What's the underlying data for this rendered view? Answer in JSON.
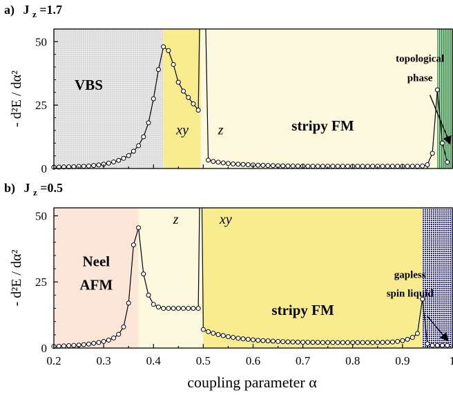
{
  "chart_data": [
    {
      "type": "line",
      "panel_letter": "a)",
      "panel_param": "J",
      "panel_sub": "z",
      "panel_value": "=1.7",
      "ylabel": "- d²E / dα²",
      "xlim": [
        0.2,
        1.0
      ],
      "ylim": [
        0,
        55
      ],
      "yticks": [
        0,
        25,
        50
      ],
      "phases": [
        {
          "from": 0.2,
          "to": 0.42,
          "fill": "#e6e6e6",
          "pattern": "dots-gray"
        },
        {
          "from": 0.42,
          "to": 0.495,
          "fill": "#f8ec8e",
          "pattern": ""
        },
        {
          "from": 0.495,
          "to": 0.97,
          "fill": "#fdf9de",
          "pattern": ""
        },
        {
          "from": 0.97,
          "to": 1.0,
          "fill": "#3f9a4a",
          "pattern": "lines-green"
        }
      ],
      "phase_labels": [
        {
          "text": "VBS",
          "x": 0.27,
          "y": 31,
          "style": "bold"
        },
        {
          "text": "xy",
          "x": 0.458,
          "y": 13.5,
          "style": "italic"
        },
        {
          "text": "z",
          "x": 0.535,
          "y": 13.5,
          "style": "italic"
        },
        {
          "text": "stripy FM",
          "x": 0.74,
          "y": 15,
          "style": "bold"
        },
        {
          "text": "topological",
          "x": 0.935,
          "y": 42,
          "style": "bold-small"
        },
        {
          "text": "phase",
          "x": 0.935,
          "y": 34.5,
          "style": "bold-small"
        }
      ],
      "series": [
        {
          "x": [
            0.2,
            0.21,
            0.22,
            0.23,
            0.24,
            0.25,
            0.26,
            0.27,
            0.28,
            0.29,
            0.3,
            0.31,
            0.32,
            0.33,
            0.34,
            0.35,
            0.36,
            0.37,
            0.38,
            0.39,
            0.4,
            0.41,
            0.42,
            0.43,
            0.44,
            0.45,
            0.46,
            0.47,
            0.48,
            0.49
          ],
          "y": [
            0.5,
            0.55,
            0.6,
            0.65,
            0.7,
            0.8,
            0.9,
            1.0,
            1.2,
            1.4,
            1.7,
            2.1,
            2.6,
            3.2,
            4.0,
            5.1,
            6.8,
            9.0,
            12.5,
            18.0,
            27.5,
            39.0,
            48.0,
            46.5,
            41.0,
            34.0,
            30.5,
            28.0,
            25.5,
            23.0
          ]
        },
        {
          "x": [
            0.51,
            0.52,
            0.53,
            0.54,
            0.55,
            0.56,
            0.57,
            0.58,
            0.59,
            0.6,
            0.61,
            0.62,
            0.63,
            0.64,
            0.65,
            0.66,
            0.67,
            0.68,
            0.69,
            0.7,
            0.71,
            0.72,
            0.73,
            0.74,
            0.75,
            0.76,
            0.77,
            0.78,
            0.79,
            0.8,
            0.81,
            0.82,
            0.83,
            0.84,
            0.85,
            0.86,
            0.87,
            0.88,
            0.89,
            0.9,
            0.91,
            0.92,
            0.93,
            0.94,
            0.95,
            0.96,
            0.97,
            0.98,
            0.99
          ],
          "y": [
            3.3,
            2.8,
            2.5,
            2.2,
            2.0,
            1.8,
            1.7,
            1.6,
            1.5,
            1.4,
            1.3,
            1.25,
            1.2,
            1.15,
            1.1,
            1.05,
            1.0,
            1.0,
            0.95,
            0.95,
            0.9,
            0.9,
            0.9,
            0.9,
            0.9,
            0.9,
            0.9,
            0.9,
            0.9,
            0.9,
            0.9,
            0.9,
            0.9,
            0.9,
            0.9,
            0.9,
            0.9,
            0.9,
            0.9,
            0.9,
            0.9,
            0.9,
            0.9,
            1.0,
            1.5,
            6.0,
            31.0,
            10.0,
            2.5
          ]
        }
      ],
      "spikes": [
        {
          "x0": 0.49,
          "y0": 23.0,
          "x_peak": 0.4925,
          "x_back": 0.505,
          "x1": 0.51,
          "y1": 3.3
        }
      ],
      "arrow": {
        "from": [
          0.955,
          29
        ],
        "to": [
          0.995,
          10
        ]
      }
    },
    {
      "type": "line",
      "panel_letter": "b)",
      "panel_param": "J",
      "panel_sub": "z",
      "panel_value": "=0.5",
      "ylabel": "- d²E / dα²",
      "xlabel": "coupling parameter  α",
      "xlim": [
        0.2,
        1.0
      ],
      "ylim": [
        0,
        53
      ],
      "yticks": [
        0,
        25,
        50
      ],
      "xticks": [
        0.2,
        0.3,
        0.4,
        0.5,
        0.6,
        0.7,
        0.8,
        0.9,
        1
      ],
      "xtick_labels": [
        "0.2",
        "0.3",
        "0.4",
        "0.5",
        "0.6",
        "0.7",
        "0.8",
        "0.9",
        "1"
      ],
      "phases": [
        {
          "from": 0.2,
          "to": 0.37,
          "fill": "#fce6d8",
          "pattern": ""
        },
        {
          "from": 0.37,
          "to": 0.5,
          "fill": "#fdf9de",
          "pattern": ""
        },
        {
          "from": 0.5,
          "to": 0.94,
          "fill": "#f8ec8e",
          "pattern": ""
        },
        {
          "from": 0.94,
          "to": 1.0,
          "fill": "#2b2bb0",
          "pattern": "dots-blue"
        }
      ],
      "phase_labels": [
        {
          "text": "Neel",
          "x": 0.285,
          "y": 31,
          "style": "bold"
        },
        {
          "text": "AFM",
          "x": 0.285,
          "y": 22,
          "style": "bold"
        },
        {
          "text": "z",
          "x": 0.445,
          "y": 47,
          "style": "italic"
        },
        {
          "text": "xy",
          "x": 0.545,
          "y": 47,
          "style": "italic"
        },
        {
          "text": "stripy FM",
          "x": 0.7,
          "y": 12.5,
          "style": "bold"
        },
        {
          "text": "gapless",
          "x": 0.915,
          "y": 26.5,
          "style": "bold-small"
        },
        {
          "text": "spin liquid",
          "x": 0.915,
          "y": 19.5,
          "style": "bold-small"
        }
      ],
      "series": [
        {
          "x": [
            0.2,
            0.21,
            0.22,
            0.23,
            0.24,
            0.25,
            0.26,
            0.27,
            0.28,
            0.29,
            0.3,
            0.31,
            0.32,
            0.33,
            0.34,
            0.35,
            0.36,
            0.37,
            0.38,
            0.39,
            0.4,
            0.41,
            0.42,
            0.43,
            0.44,
            0.45,
            0.46,
            0.47,
            0.48,
            0.49
          ],
          "y": [
            0.6,
            0.7,
            0.8,
            0.9,
            1.0,
            1.1,
            1.3,
            1.5,
            1.8,
            2.1,
            2.5,
            3.0,
            3.8,
            5.2,
            8.0,
            17.0,
            39.0,
            45.5,
            28.0,
            20.0,
            16.5,
            15.5,
            15.0,
            15.0,
            15.0,
            15.0,
            15.0,
            15.0,
            15.0,
            15.0
          ]
        },
        {
          "x": [
            0.5,
            0.51,
            0.52,
            0.53,
            0.54,
            0.55,
            0.56,
            0.57,
            0.58,
            0.59,
            0.6,
            0.61,
            0.62,
            0.63,
            0.64,
            0.65,
            0.66,
            0.67,
            0.68,
            0.69,
            0.7,
            0.71,
            0.72,
            0.73,
            0.74,
            0.75,
            0.76,
            0.77,
            0.78,
            0.79,
            0.8,
            0.81,
            0.82,
            0.83,
            0.84,
            0.85,
            0.86,
            0.87,
            0.88,
            0.89,
            0.9,
            0.91,
            0.92,
            0.93,
            0.94,
            0.95,
            0.96,
            0.97,
            0.98,
            0.99
          ],
          "y": [
            7.0,
            6.2,
            5.6,
            5.1,
            4.7,
            4.3,
            4.0,
            3.7,
            3.5,
            3.3,
            3.1,
            2.9,
            2.8,
            2.7,
            2.6,
            2.5,
            2.4,
            2.35,
            2.3,
            2.25,
            2.2,
            2.2,
            2.15,
            2.15,
            2.1,
            2.1,
            2.1,
            2.1,
            2.1,
            2.1,
            2.1,
            2.1,
            2.1,
            2.1,
            2.1,
            2.1,
            2.15,
            2.2,
            2.3,
            2.5,
            2.8,
            3.3,
            4.0,
            5.5,
            18.5,
            1.6,
            1.0,
            1.0,
            1.0,
            1.0
          ]
        }
      ],
      "spikes": [
        {
          "x0": 0.49,
          "y0": 15.0,
          "x_peak": 0.4925,
          "x_back": 0.4975,
          "x1": 0.5,
          "y1": 7.0
        }
      ],
      "arrow": {
        "from": [
          0.95,
          12
        ],
        "to": [
          0.99,
          3
        ]
      }
    }
  ]
}
